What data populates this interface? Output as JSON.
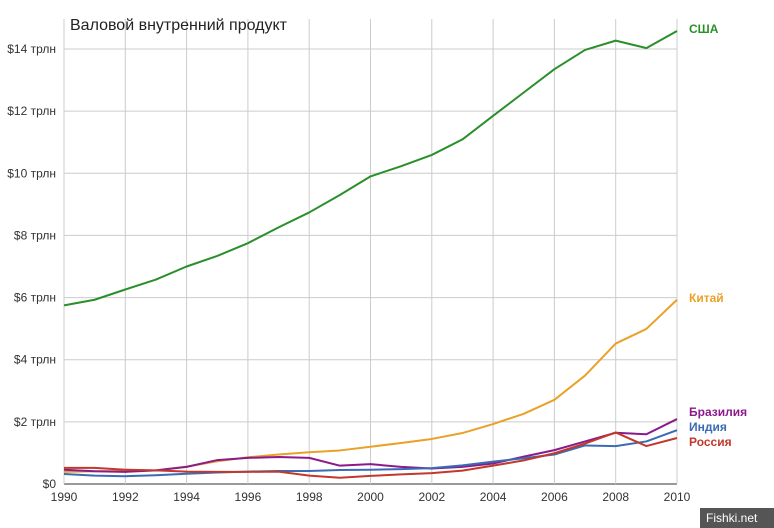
{
  "chart_data": {
    "type": "line",
    "title": "Валовой внутренний продукт",
    "xlabel": "",
    "ylabel": "",
    "x": [
      1990,
      1991,
      1992,
      1993,
      1994,
      1995,
      1996,
      1997,
      1998,
      1999,
      2000,
      2001,
      2002,
      2003,
      2004,
      2005,
      2006,
      2007,
      2008,
      2009,
      2010
    ],
    "xticks": [
      "1990",
      "1992",
      "1994",
      "1996",
      "1998",
      "2000",
      "2002",
      "2004",
      "2006",
      "2008",
      "2010"
    ],
    "yticks": [
      "$0",
      "$2 трлн",
      "$4 трлн",
      "$6 трлн",
      "$8 трлн",
      "$10 трлн",
      "$12 трлн",
      "$14 трлн"
    ],
    "xlim": [
      1990,
      2010
    ],
    "ylim": [
      0,
      14
    ],
    "grid": true,
    "legend": "inline-right",
    "series": [
      {
        "name": "США",
        "color": "#2a8f2a",
        "values": [
          5.75,
          5.93,
          6.26,
          6.58,
          7.0,
          7.34,
          7.75,
          8.26,
          8.74,
          9.3,
          9.9,
          10.23,
          10.59,
          11.09,
          11.85,
          12.6,
          13.35,
          13.97,
          14.27,
          14.03,
          14.58
        ]
      },
      {
        "name": "Китай",
        "color": "#e9a128",
        "values": [
          0.39,
          0.41,
          0.42,
          0.44,
          0.56,
          0.73,
          0.86,
          0.95,
          1.02,
          1.08,
          1.2,
          1.32,
          1.45,
          1.64,
          1.93,
          2.26,
          2.71,
          3.49,
          4.52,
          4.99,
          5.93
        ]
      },
      {
        "name": "Бразилия",
        "color": "#8b1a8b",
        "values": [
          0.46,
          0.41,
          0.39,
          0.44,
          0.55,
          0.77,
          0.84,
          0.87,
          0.84,
          0.59,
          0.64,
          0.55,
          0.5,
          0.55,
          0.66,
          0.88,
          1.09,
          1.37,
          1.65,
          1.6,
          2.09
        ]
      },
      {
        "name": "Индия",
        "color": "#3b6bb5",
        "values": [
          0.32,
          0.27,
          0.25,
          0.28,
          0.33,
          0.37,
          0.4,
          0.42,
          0.42,
          0.45,
          0.46,
          0.48,
          0.51,
          0.6,
          0.72,
          0.83,
          0.95,
          1.24,
          1.22,
          1.37,
          1.73
        ]
      },
      {
        "name": "Россия",
        "color": "#c0392b",
        "values": [
          0.52,
          0.52,
          0.46,
          0.44,
          0.4,
          0.39,
          0.39,
          0.4,
          0.27,
          0.2,
          0.26,
          0.31,
          0.35,
          0.43,
          0.59,
          0.76,
          0.99,
          1.3,
          1.66,
          1.22,
          1.48
        ]
      }
    ]
  },
  "watermark": "Fishki.net"
}
